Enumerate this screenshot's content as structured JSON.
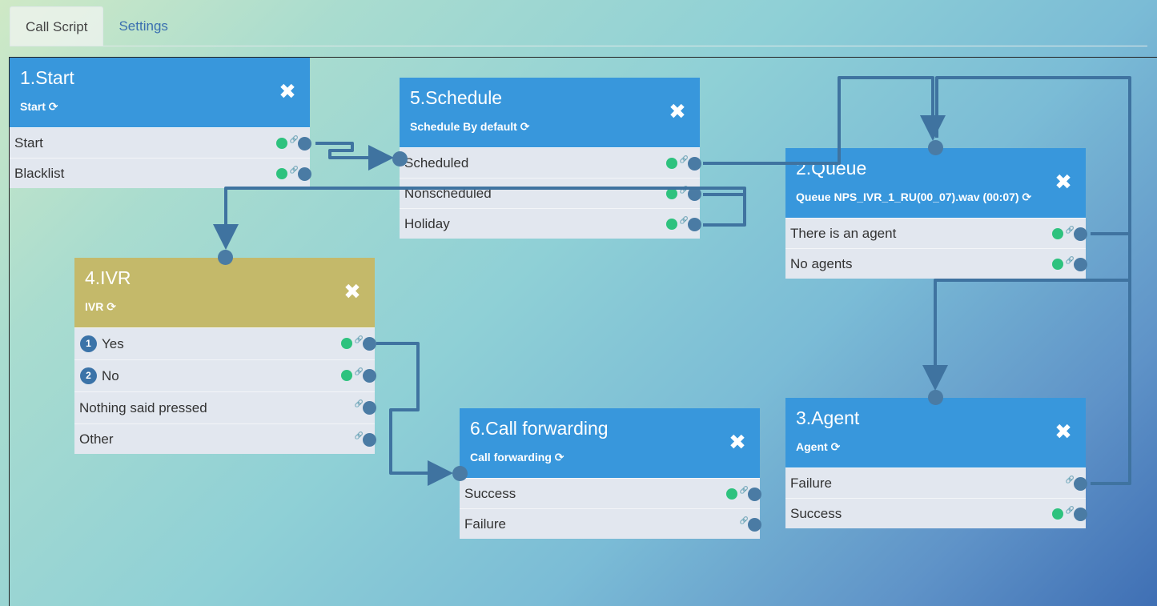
{
  "tabs": [
    {
      "label": "Call Script",
      "active": true
    },
    {
      "label": "Settings",
      "active": false
    }
  ],
  "icons": {
    "close": "close-x-icon",
    "refresh": "refresh-icon",
    "link": "link-icon"
  },
  "colors": {
    "header": "#3897dc",
    "ivr_header": "#c4b96a",
    "enabled_dot": "#2ec27e",
    "port": "#4a7ba4"
  },
  "nodes": {
    "start": {
      "title": "1.Start",
      "subtitle": "Start",
      "rows": [
        {
          "label": "Start",
          "enabled": true
        },
        {
          "label": "Blacklist",
          "enabled": true
        }
      ]
    },
    "schedule": {
      "title": "5.Schedule",
      "subtitle": "Schedule By default",
      "rows": [
        {
          "label": "Scheduled",
          "enabled": true
        },
        {
          "label": "Nonscheduled",
          "enabled": true
        },
        {
          "label": "Holiday",
          "enabled": true
        }
      ]
    },
    "queue": {
      "title": "2.Queue",
      "subtitle": "Queue NPS_IVR_1_RU(00_07).wav (00:07)",
      "rows": [
        {
          "label": "There is an agent",
          "enabled": true
        },
        {
          "label": "No agents",
          "enabled": true
        }
      ]
    },
    "ivr": {
      "title": "4.IVR",
      "subtitle": "IVR",
      "rows": [
        {
          "num": "1",
          "label": "Yes",
          "enabled": true
        },
        {
          "num": "2",
          "label": "No",
          "enabled": true
        },
        {
          "label": "Nothing said pressed",
          "enabled": false
        },
        {
          "label": "Other",
          "enabled": false
        }
      ]
    },
    "forward": {
      "title": "6.Call forwarding",
      "subtitle": "Call forwarding",
      "rows": [
        {
          "label": "Success",
          "enabled": true
        },
        {
          "label": "Failure",
          "enabled": false
        }
      ]
    },
    "agent": {
      "title": "3.Agent",
      "subtitle": "Agent",
      "rows": [
        {
          "label": "Failure",
          "enabled": false
        },
        {
          "label": "Success",
          "enabled": true
        }
      ]
    }
  }
}
